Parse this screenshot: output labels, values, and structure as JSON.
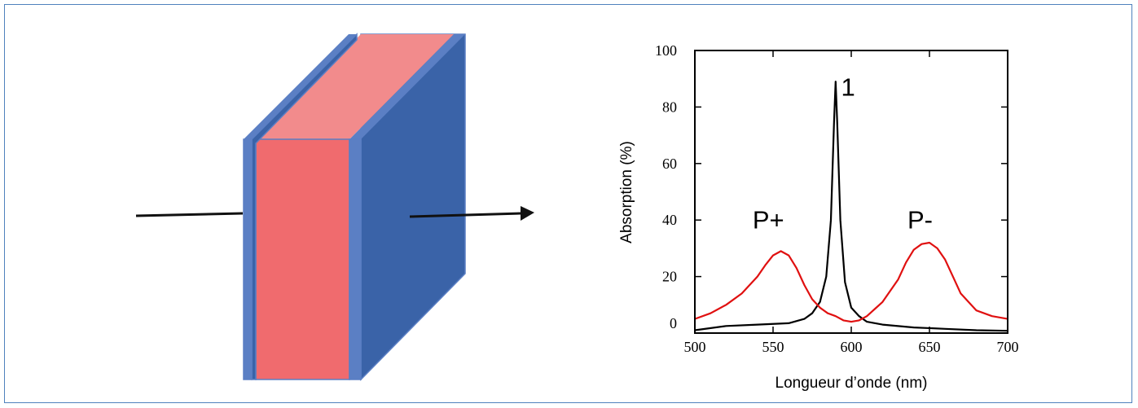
{
  "figure": {
    "frame_color": "#4f81bd",
    "cell_diagram": {
      "mirror_color": "#3a63a8",
      "mirror_edge_color": "#5b7fc4",
      "dye_layer_color": "#f06b6e",
      "dye_layer_top_color": "#f28b8c",
      "arrow_color": "#111111"
    }
  },
  "chart_data": {
    "type": "line",
    "title": "",
    "xlabel": "Longueur d’onde (nm)",
    "ylabel": "Absorption (%)",
    "xlim": [
      500,
      700
    ],
    "ylim": [
      0,
      100
    ],
    "xticks": [
      "500",
      "550",
      "600",
      "650",
      "700"
    ],
    "yticks": [
      "0",
      "20",
      "40",
      "60",
      "80",
      "100"
    ],
    "grid": false,
    "series": [
      {
        "name": "1",
        "color": "#000000",
        "x": [
          500,
          520,
          540,
          560,
          570,
          575,
          580,
          584,
          587,
          589,
          590,
          591,
          593,
          596,
          600,
          605,
          610,
          620,
          640,
          660,
          680,
          700
        ],
        "y": [
          1,
          2.5,
          3,
          3.5,
          5,
          7,
          11,
          20,
          40,
          75,
          89,
          75,
          40,
          18,
          9,
          6,
          4,
          3,
          2,
          1.5,
          1,
          0.8
        ]
      },
      {
        "name": "P+ / P-",
        "color": "#e01010",
        "x": [
          500,
          510,
          520,
          530,
          540,
          545,
          550,
          555,
          560,
          565,
          570,
          575,
          580,
          585,
          590,
          595,
          600,
          605,
          610,
          615,
          620,
          630,
          635,
          640,
          645,
          650,
          655,
          660,
          665,
          670,
          680,
          690,
          700
        ],
        "y": [
          5,
          7,
          10,
          14,
          20,
          24,
          27.5,
          29,
          27.5,
          23,
          17,
          12,
          9,
          7,
          6,
          4.5,
          4,
          4.5,
          6,
          8.5,
          11,
          19,
          25,
          29.5,
          31.5,
          32,
          30,
          26,
          20,
          14,
          8,
          6,
          5
        ]
      }
    ],
    "annotations": [
      {
        "text": "1",
        "x": 598,
        "y": 84
      },
      {
        "text": "P+",
        "x": 547,
        "y": 37
      },
      {
        "text": "P-",
        "x": 644,
        "y": 37
      }
    ]
  }
}
